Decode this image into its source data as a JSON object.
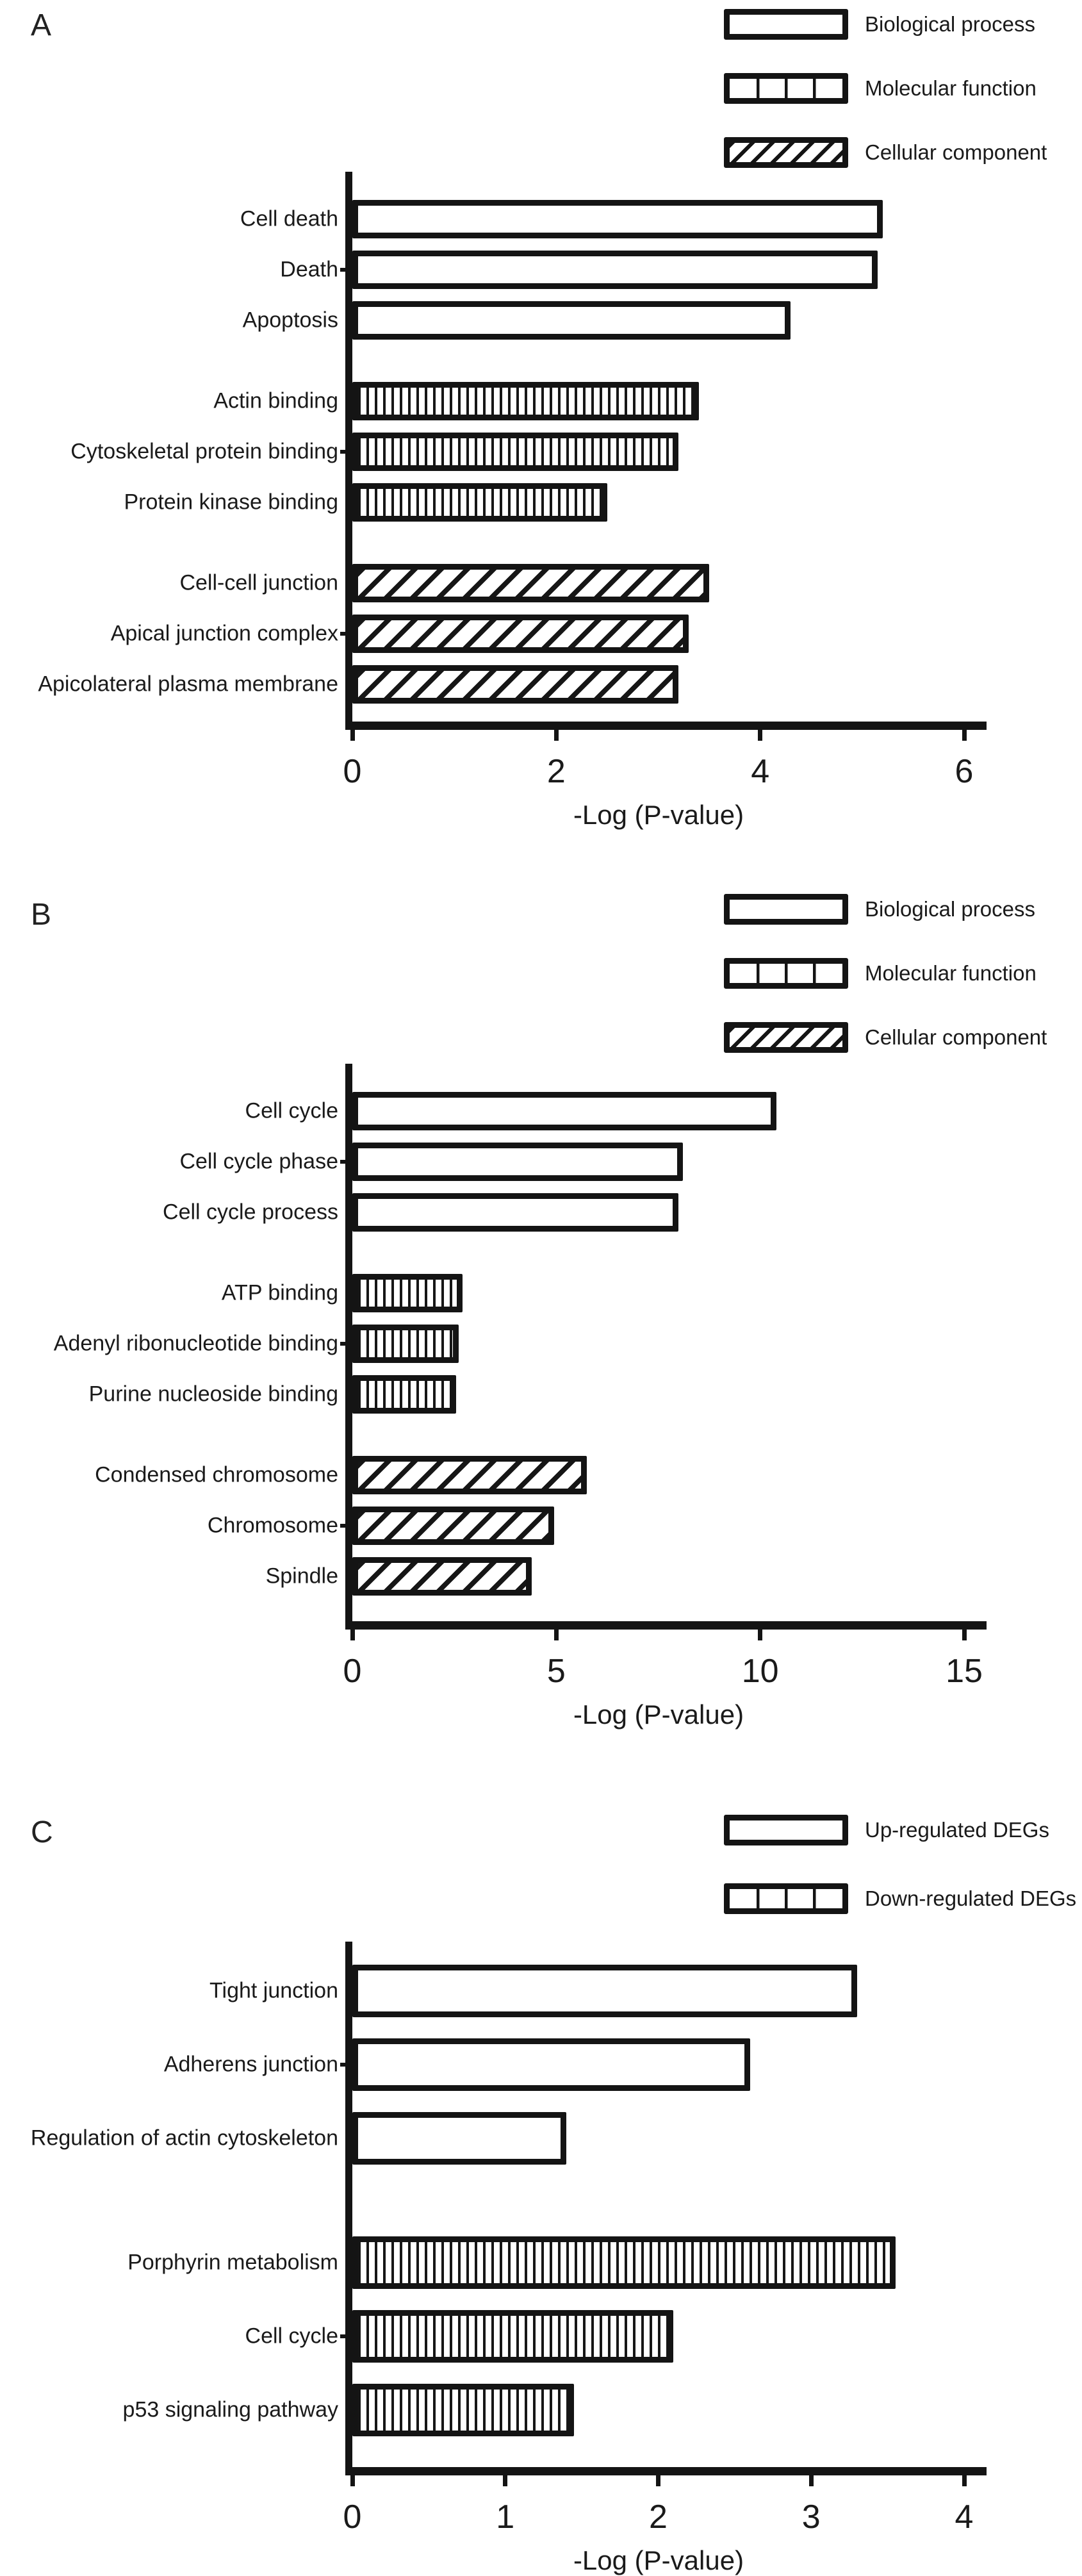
{
  "chart_data": [
    {
      "type": "bar",
      "orientation": "horizontal",
      "panel": "A",
      "xlabel": "-Log (P-value)",
      "xlim": [
        0,
        6
      ],
      "xticks": [
        0,
        2,
        4,
        6
      ],
      "grid": false,
      "legend_position": "top-right",
      "legend": [
        {
          "label": "Biological process",
          "pattern": "open"
        },
        {
          "label": "Molecular function",
          "pattern": "segmented"
        },
        {
          "label": "Cellular component",
          "pattern": "hatched"
        }
      ],
      "groups": [
        {
          "name": "Biological process",
          "pattern": "open",
          "bars": [
            {
              "category": "Cell death",
              "value": 5.2
            },
            {
              "category": "Death",
              "value": 5.15
            },
            {
              "category": "Apoptosis",
              "value": 4.3
            }
          ]
        },
        {
          "name": "Molecular function",
          "pattern": "striped",
          "bars": [
            {
              "category": "Actin binding",
              "value": 3.4
            },
            {
              "category": "Cytoskeletal protein binding",
              "value": 3.2
            },
            {
              "category": "Protein kinase binding",
              "value": 2.5
            }
          ]
        },
        {
          "name": "Cellular component",
          "pattern": "hatched",
          "bars": [
            {
              "category": "Cell-cell junction",
              "value": 3.5
            },
            {
              "category": "Apical junction complex",
              "value": 3.3
            },
            {
              "category": "Apicolateral plasma membrane",
              "value": 3.2
            }
          ]
        }
      ]
    },
    {
      "type": "bar",
      "orientation": "horizontal",
      "panel": "B",
      "xlabel": "-Log (P-value)",
      "xlim": [
        0,
        15
      ],
      "xticks": [
        0,
        5,
        10,
        15
      ],
      "grid": false,
      "legend_position": "top-right",
      "legend": [
        {
          "label": "Biological process",
          "pattern": "open"
        },
        {
          "label": "Molecular function",
          "pattern": "segmented"
        },
        {
          "label": "Cellular component",
          "pattern": "hatched"
        }
      ],
      "groups": [
        {
          "name": "Biological process",
          "pattern": "open",
          "bars": [
            {
              "category": "Cell cycle",
              "value": 10.4
            },
            {
              "category": "Cell cycle phase",
              "value": 8.1
            },
            {
              "category": "Cell cycle process",
              "value": 8.0
            }
          ]
        },
        {
          "name": "Molecular function",
          "pattern": "striped",
          "bars": [
            {
              "category": "ATP binding",
              "value": 2.7
            },
            {
              "category": "Adenyl ribonucleotide binding",
              "value": 2.6
            },
            {
              "category": "Purine nucleoside binding",
              "value": 2.55
            }
          ]
        },
        {
          "name": "Cellular component",
          "pattern": "hatched",
          "bars": [
            {
              "category": "Condensed chromosome",
              "value": 5.75
            },
            {
              "category": "Chromosome",
              "value": 4.95
            },
            {
              "category": "Spindle",
              "value": 4.4
            }
          ]
        }
      ]
    },
    {
      "type": "bar",
      "orientation": "horizontal",
      "panel": "C",
      "xlabel": "-Log (P-value)",
      "xlim": [
        0,
        4
      ],
      "xticks": [
        0,
        1,
        2,
        3,
        4
      ],
      "grid": false,
      "legend_position": "top-right",
      "legend": [
        {
          "label": "Up-regulated DEGs",
          "pattern": "open"
        },
        {
          "label": "Down-regulated DEGs",
          "pattern": "segmented"
        }
      ],
      "groups": [
        {
          "name": "Up-regulated DEGs",
          "pattern": "open",
          "bars": [
            {
              "category": "Tight junction",
              "value": 3.3
            },
            {
              "category": "Adherens junction",
              "value": 2.6
            },
            {
              "category": "Regulation of actin cytoskeleton",
              "value": 1.4
            }
          ]
        },
        {
          "name": "Down-regulated DEGs",
          "pattern": "striped",
          "bars": [
            {
              "category": "Porphyrin metabolism",
              "value": 3.55
            },
            {
              "category": "Cell cycle",
              "value": 2.1
            },
            {
              "category": "p53 signaling pathway",
              "value": 1.45
            }
          ]
        }
      ]
    }
  ]
}
